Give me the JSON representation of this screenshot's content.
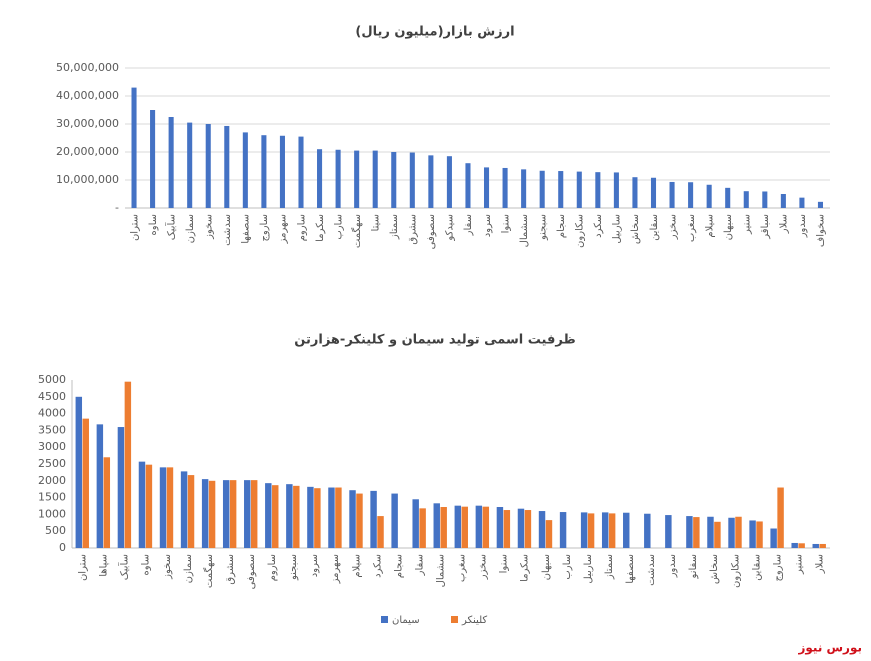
{
  "chart_data": [
    {
      "type": "bar",
      "title": "ارزش بازار(میلیون ریال)",
      "color": "#4472c4",
      "grid": true,
      "categories": [
        "ستران",
        "ساوه",
        "سآبیک",
        "سمازن",
        "سخوز",
        "سدشت",
        "سصفها",
        "ساروج",
        "سهرمز",
        "ساروم",
        "سکرما",
        "سارب",
        "سهگمت",
        "سیتا",
        "سمتاز",
        "سشرق",
        "سصوفی",
        "سیدکو",
        "سفار",
        "سرود",
        "سنوا",
        "سشمال",
        "سبجنو",
        "سجام",
        "سکارون",
        "سکرد",
        "ساربیل",
        "سخاش",
        "سقاین",
        "سخزر",
        "سغرب",
        "سیلام",
        "سبهان",
        "سنیر",
        "سباقر",
        "سلار",
        "سدور",
        "سخواف"
      ],
      "values": [
        43000000,
        35000000,
        32500000,
        30500000,
        30000000,
        29300000,
        27000000,
        26000000,
        25800000,
        25500000,
        21000000,
        20800000,
        20500000,
        20500000,
        20000000,
        19800000,
        18800000,
        18500000,
        16000000,
        14500000,
        14300000,
        13800000,
        13300000,
        13200000,
        13000000,
        12800000,
        12700000,
        11000000,
        10800000,
        9300000,
        9200000,
        8300000,
        7200000,
        6000000,
        5900000,
        5000000,
        3700000,
        2200000
      ],
      "ylim": [
        0,
        50000000
      ],
      "yticks": [
        {
          "value": 0,
          "label": "-"
        },
        {
          "value": 10000000,
          "label": "10,000,000"
        },
        {
          "value": 20000000,
          "label": "20,000,000"
        },
        {
          "value": 30000000,
          "label": "30,000,000"
        },
        {
          "value": 40000000,
          "label": "40,000,000"
        },
        {
          "value": 50000000,
          "label": "50,000,000"
        }
      ]
    },
    {
      "type": "bar",
      "title": "ظرفیت اسمی تولید سیمان و کلینکر-هزارتن",
      "grid": false,
      "legend": "bottom",
      "categories": [
        "ستران",
        "سپاها",
        "سآبیک",
        "ساوه",
        "سخوز",
        "سمازن",
        "سهگمت",
        "سشرق",
        "سصوفی",
        "ساروم",
        "سبجنو",
        "سرود",
        "سهرمز",
        "سیلام",
        "سکرد",
        "سجام",
        "سفار",
        "سشمال",
        "سغرب",
        "سخزر",
        "سنوا",
        "سکرما",
        "سبهان",
        "سارب",
        "ساربیل",
        "سمتاز",
        "سصفها",
        "سدشت",
        "سدور",
        "سفانو",
        "سخاش",
        "سکارون",
        "سقاین",
        "ساروج",
        "سنیر",
        "سلار"
      ],
      "series": [
        {
          "name": "سیمان",
          "color": "#4472c4",
          "values": [
            4500,
            3680,
            3600,
            2570,
            2400,
            2280,
            2050,
            2020,
            2020,
            1930,
            1900,
            1820,
            1800,
            1720,
            1700,
            1620,
            1450,
            1330,
            1260,
            1260,
            1220,
            1170,
            1100,
            1070,
            1060,
            1060,
            1050,
            1020,
            980,
            950,
            930,
            900,
            820,
            580,
            150,
            120
          ]
        },
        {
          "name": "کلینکر",
          "color": "#ed7d31",
          "values": [
            3850,
            2700,
            4950,
            2480,
            2400,
            2170,
            2000,
            2020,
            2020,
            1870,
            1850,
            1780,
            1800,
            1620,
            950,
            null,
            1180,
            1220,
            1230,
            1230,
            1130,
            1130,
            830,
            null,
            1030,
            1030,
            null,
            null,
            null,
            920,
            780,
            930,
            790,
            1800,
            140,
            120
          ]
        }
      ],
      "ylim": [
        0,
        5000
      ],
      "yticks": [
        0,
        500,
        1000,
        1500,
        2000,
        2500,
        3000,
        3500,
        4000,
        4500,
        5000
      ]
    }
  ],
  "source": "بورس نیوز"
}
